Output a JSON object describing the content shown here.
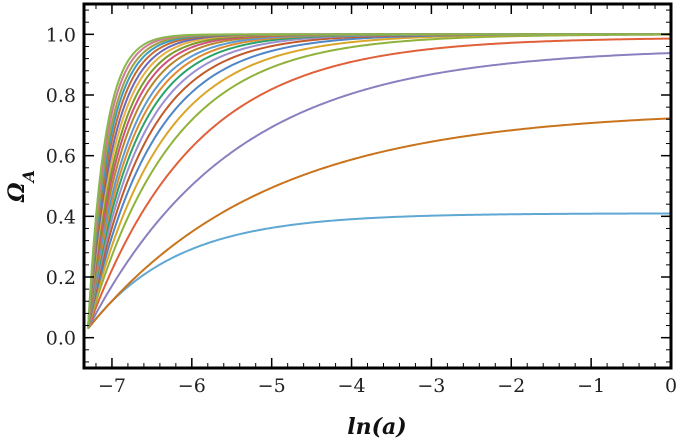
{
  "chart_data": {
    "type": "line",
    "title": "",
    "xlabel": "ln(a)",
    "ylabel": "Ω_A",
    "xlim": [
      -7.35,
      0
    ],
    "ylim": [
      -0.1,
      1.1
    ],
    "x_ticks": [
      -7,
      -6,
      -5,
      -4,
      -3,
      -2,
      -1,
      0
    ],
    "x_tick_labels": [
      "−7",
      "−6",
      "−5",
      "−4",
      "−3",
      "−2",
      "−1",
      "0"
    ],
    "y_ticks": [
      0.0,
      0.2,
      0.4,
      0.6,
      0.8,
      1.0
    ],
    "y_tick_labels": [
      "0.0",
      "0.2",
      "0.4",
      "0.6",
      "0.8",
      "1.0"
    ],
    "grid": false,
    "legend": "none",
    "x_start": -7.3,
    "y_start": 0.03,
    "series": [
      {
        "color": "#5fa8d3",
        "asymptote": 0.41,
        "rate": 0.9
      },
      {
        "color": "#c9741c",
        "asymptote": 0.75,
        "rate": 0.45
      },
      {
        "color": "#8a80c0",
        "asymptote": 0.955,
        "rate": 0.55
      },
      {
        "color": "#e0603a",
        "asymptote": 0.99,
        "rate": 0.75
      },
      {
        "color": "#8fb23a",
        "asymptote": 1.0,
        "rate": 0.95
      },
      {
        "color": "#d9a62a",
        "asymptote": 1.0,
        "rate": 1.1
      },
      {
        "color": "#4f86c6",
        "asymptote": 1.0,
        "rate": 1.25
      },
      {
        "color": "#c05a2a",
        "asymptote": 1.0,
        "rate": 1.4
      },
      {
        "color": "#9b8fd0",
        "asymptote": 1.0,
        "rate": 1.55
      },
      {
        "color": "#2aa36b",
        "asymptote": 1.0,
        "rate": 1.7
      },
      {
        "color": "#e08a30",
        "asymptote": 1.0,
        "rate": 1.85
      },
      {
        "color": "#5a9bd5",
        "asymptote": 1.0,
        "rate": 2.0
      },
      {
        "color": "#b8862b",
        "asymptote": 1.0,
        "rate": 2.2
      },
      {
        "color": "#d05080",
        "asymptote": 1.0,
        "rate": 2.4
      },
      {
        "color": "#7a9a2a",
        "asymptote": 1.0,
        "rate": 2.6
      },
      {
        "color": "#e8b040",
        "asymptote": 1.0,
        "rate": 2.85
      },
      {
        "color": "#6a6ab8",
        "asymptote": 1.0,
        "rate": 3.1
      },
      {
        "color": "#c86a30",
        "asymptote": 1.0,
        "rate": 3.4
      },
      {
        "color": "#3a9ec0",
        "asymptote": 1.0,
        "rate": 3.7
      },
      {
        "color": "#a0a040",
        "asymptote": 1.0,
        "rate": 4.0
      },
      {
        "color": "#d07898",
        "asymptote": 1.0,
        "rate": 4.4
      },
      {
        "color": "#88b84a",
        "asymptote": 1.0,
        "rate": 4.8
      }
    ]
  }
}
